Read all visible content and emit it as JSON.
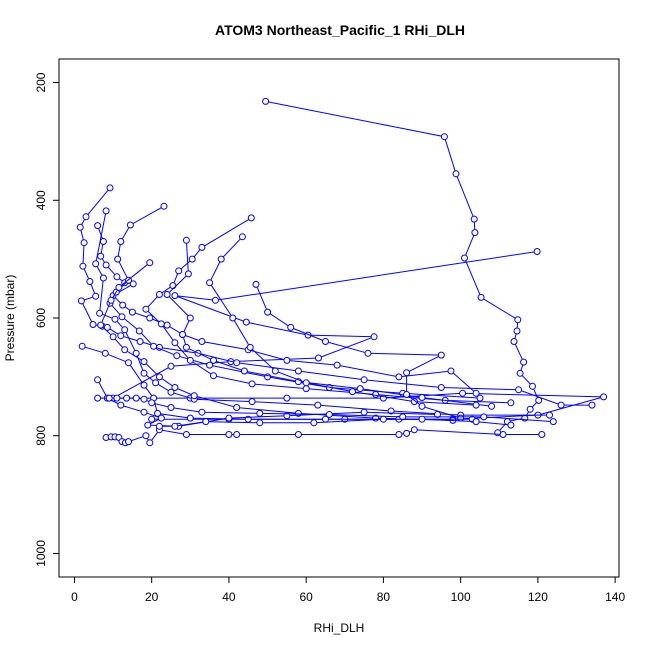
{
  "chart_data": {
    "type": "scatter",
    "title": "ATOM3 Northeast_Pacific_1 RHi_DLH",
    "xlabel": "RHi_DLH",
    "ylabel": "Pressure (mbar)",
    "xlim": [
      -4,
      141
    ],
    "ylim": [
      1040,
      160
    ],
    "y_inverted": true,
    "x_ticks": [
      0,
      20,
      40,
      60,
      80,
      100,
      120,
      140
    ],
    "y_ticks": [
      200,
      400,
      600,
      800,
      1000
    ],
    "grid": false,
    "legend": "none",
    "color": "#0000ff",
    "marker": "open-circle",
    "series": [
      {
        "values": [
          {
            "x": 49.5,
            "y": 232
          },
          {
            "x": 95.8,
            "y": 292
          },
          {
            "x": 98.8,
            "y": 355
          },
          {
            "x": 103.5,
            "y": 432
          },
          {
            "x": 103.7,
            "y": 455
          },
          {
            "x": 101.0,
            "y": 498
          },
          {
            "x": 105.3,
            "y": 565
          },
          {
            "x": 114.8,
            "y": 603
          },
          {
            "x": 114.6,
            "y": 622
          },
          {
            "x": 113.8,
            "y": 640
          },
          {
            "x": 116.3,
            "y": 675
          },
          {
            "x": 115.4,
            "y": 694
          },
          {
            "x": 118.6,
            "y": 716
          },
          {
            "x": 120.2,
            "y": 740
          },
          {
            "x": 118.0,
            "y": 755
          },
          {
            "x": 116.6,
            "y": 770
          },
          {
            "x": 112.1,
            "y": 776
          },
          {
            "x": 109.6,
            "y": 795
          }
        ]
      },
      {
        "values": [
          {
            "x": 119.8,
            "y": 487
          },
          {
            "x": 36.5,
            "y": 570
          },
          {
            "x": 26.0,
            "y": 562
          },
          {
            "x": 44.5,
            "y": 607
          },
          {
            "x": 60.5,
            "y": 629
          },
          {
            "x": 77.6,
            "y": 632
          },
          {
            "x": 63.2,
            "y": 668
          },
          {
            "x": 40.5,
            "y": 674
          },
          {
            "x": 25.0,
            "y": 682
          },
          {
            "x": 10.0,
            "y": 736
          },
          {
            "x": 30.0,
            "y": 736
          },
          {
            "x": 55.0,
            "y": 736
          },
          {
            "x": 80.0,
            "y": 736
          },
          {
            "x": 100.5,
            "y": 728
          },
          {
            "x": 137.0,
            "y": 734
          },
          {
            "x": 120.0,
            "y": 765
          },
          {
            "x": 98.0,
            "y": 772
          },
          {
            "x": 70.0,
            "y": 772
          },
          {
            "x": 40.0,
            "y": 772
          },
          {
            "x": 20.0,
            "y": 772
          }
        ]
      },
      {
        "values": [
          {
            "x": 9.2,
            "y": 379
          },
          {
            "x": 3.0,
            "y": 428
          },
          {
            "x": 1.5,
            "y": 446
          },
          {
            "x": 2.5,
            "y": 472
          },
          {
            "x": 2.2,
            "y": 512
          },
          {
            "x": 4.0,
            "y": 538
          },
          {
            "x": 5.5,
            "y": 563
          },
          {
            "x": 1.8,
            "y": 571
          },
          {
            "x": 4.8,
            "y": 611
          },
          {
            "x": 7.2,
            "y": 614
          },
          {
            "x": 8.5,
            "y": 616
          },
          {
            "x": 12.0,
            "y": 630
          },
          {
            "x": 17.0,
            "y": 640
          },
          {
            "x": 22.0,
            "y": 650
          },
          {
            "x": 32.0,
            "y": 660
          },
          {
            "x": 42.0,
            "y": 676
          },
          {
            "x": 58.0,
            "y": 690
          },
          {
            "x": 75.0,
            "y": 705
          },
          {
            "x": 95.0,
            "y": 718
          },
          {
            "x": 115.0,
            "y": 722
          },
          {
            "x": 126.0,
            "y": 748
          },
          {
            "x": 134.0,
            "y": 748
          }
        ]
      },
      {
        "values": [
          {
            "x": 6.0,
            "y": 443
          },
          {
            "x": 7.5,
            "y": 470
          },
          {
            "x": 6.8,
            "y": 495
          },
          {
            "x": 8.2,
            "y": 510
          },
          {
            "x": 11.0,
            "y": 530
          },
          {
            "x": 13.0,
            "y": 540
          },
          {
            "x": 15.2,
            "y": 542
          },
          {
            "x": 10.0,
            "y": 562
          },
          {
            "x": 12.5,
            "y": 578
          },
          {
            "x": 15.0,
            "y": 590
          },
          {
            "x": 19.5,
            "y": 600
          },
          {
            "x": 24.0,
            "y": 612
          },
          {
            "x": 28.0,
            "y": 628
          },
          {
            "x": 33.0,
            "y": 640
          },
          {
            "x": 45.0,
            "y": 654
          },
          {
            "x": 55.0,
            "y": 672
          },
          {
            "x": 68.0,
            "y": 680
          },
          {
            "x": 84.0,
            "y": 700
          },
          {
            "x": 97.5,
            "y": 690
          },
          {
            "x": 104.0,
            "y": 728
          }
        ]
      },
      {
        "values": [
          {
            "x": 8.2,
            "y": 418
          },
          {
            "x": 5.5,
            "y": 508
          },
          {
            "x": 7.5,
            "y": 532
          },
          {
            "x": 6.5,
            "y": 592
          },
          {
            "x": 10.5,
            "y": 602
          },
          {
            "x": 13.0,
            "y": 620
          },
          {
            "x": 16.0,
            "y": 660
          },
          {
            "x": 18.0,
            "y": 694
          },
          {
            "x": 21.0,
            "y": 710
          },
          {
            "x": 25.0,
            "y": 726
          },
          {
            "x": 31.0,
            "y": 738
          },
          {
            "x": 46.0,
            "y": 742
          },
          {
            "x": 63.0,
            "y": 748
          },
          {
            "x": 82.0,
            "y": 758
          },
          {
            "x": 100.0,
            "y": 765
          },
          {
            "x": 123.0,
            "y": 765
          }
        ]
      },
      {
        "values": [
          {
            "x": 23.2,
            "y": 410
          },
          {
            "x": 14.5,
            "y": 442
          },
          {
            "x": 12.0,
            "y": 470
          },
          {
            "x": 11.2,
            "y": 500
          },
          {
            "x": 14.0,
            "y": 536
          },
          {
            "x": 10.8,
            "y": 556
          },
          {
            "x": 9.2,
            "y": 575
          },
          {
            "x": 12.3,
            "y": 598
          },
          {
            "x": 16.8,
            "y": 622
          },
          {
            "x": 20.5,
            "y": 648
          },
          {
            "x": 26.5,
            "y": 664
          },
          {
            "x": 35.0,
            "y": 680
          },
          {
            "x": 50.0,
            "y": 700
          },
          {
            "x": 66.0,
            "y": 718
          },
          {
            "x": 85.0,
            "y": 728
          },
          {
            "x": 105.0,
            "y": 736
          }
        ]
      },
      {
        "values": [
          {
            "x": 45.8,
            "y": 430
          },
          {
            "x": 33.0,
            "y": 480
          },
          {
            "x": 30.5,
            "y": 500
          },
          {
            "x": 27.0,
            "y": 520
          },
          {
            "x": 25.5,
            "y": 545
          },
          {
            "x": 22.0,
            "y": 560
          },
          {
            "x": 18.5,
            "y": 585
          },
          {
            "x": 22.5,
            "y": 610
          },
          {
            "x": 26.0,
            "y": 642
          },
          {
            "x": 30.0,
            "y": 672
          },
          {
            "x": 36.0,
            "y": 698
          },
          {
            "x": 46.0,
            "y": 712
          },
          {
            "x": 60.0,
            "y": 720
          },
          {
            "x": 78.0,
            "y": 730
          },
          {
            "x": 96.0,
            "y": 740
          },
          {
            "x": 113.0,
            "y": 744
          }
        ]
      },
      {
        "values": [
          {
            "x": 29.0,
            "y": 468
          },
          {
            "x": 29.5,
            "y": 525
          },
          {
            "x": 24.0,
            "y": 560
          },
          {
            "x": 30.0,
            "y": 600
          },
          {
            "x": 28.0,
            "y": 628
          },
          {
            "x": 29.0,
            "y": 650
          },
          {
            "x": 36.0,
            "y": 672
          },
          {
            "x": 44.0,
            "y": 690
          },
          {
            "x": 58.0,
            "y": 708
          },
          {
            "x": 74.0,
            "y": 720
          },
          {
            "x": 90.0,
            "y": 735
          },
          {
            "x": 108.0,
            "y": 750
          }
        ]
      },
      {
        "values": [
          {
            "x": 43.5,
            "y": 462
          },
          {
            "x": 38.0,
            "y": 500
          },
          {
            "x": 35.0,
            "y": 540
          },
          {
            "x": 41.0,
            "y": 600
          },
          {
            "x": 45.5,
            "y": 650
          },
          {
            "x": 52.0,
            "y": 690
          },
          {
            "x": 60.0,
            "y": 710
          },
          {
            "x": 72.0,
            "y": 725
          },
          {
            "x": 88.0,
            "y": 742
          },
          {
            "x": 104.0,
            "y": 748
          }
        ]
      },
      {
        "values": [
          {
            "x": 47.0,
            "y": 543
          },
          {
            "x": 50.0,
            "y": 590
          },
          {
            "x": 56.0,
            "y": 616
          },
          {
            "x": 65.0,
            "y": 640
          },
          {
            "x": 76.0,
            "y": 660
          },
          {
            "x": 95.0,
            "y": 663
          },
          {
            "x": 86.0,
            "y": 693
          },
          {
            "x": 86.0,
            "y": 730
          },
          {
            "x": 90.0,
            "y": 750
          },
          {
            "x": 100.0,
            "y": 770
          }
        ]
      },
      {
        "values": [
          {
            "x": 19.5,
            "y": 506
          },
          {
            "x": 11.5,
            "y": 548
          },
          {
            "x": 9.5,
            "y": 570
          },
          {
            "x": 6.8,
            "y": 612
          },
          {
            "x": 10.0,
            "y": 632
          },
          {
            "x": 13.0,
            "y": 654
          },
          {
            "x": 18.0,
            "y": 674
          },
          {
            "x": 22.0,
            "y": 700
          },
          {
            "x": 26.0,
            "y": 718
          },
          {
            "x": 31.0,
            "y": 732
          },
          {
            "x": 42.0,
            "y": 752
          },
          {
            "x": 58.0,
            "y": 762
          },
          {
            "x": 78.0,
            "y": 770
          },
          {
            "x": 98.0,
            "y": 774
          }
        ]
      },
      {
        "values": [
          {
            "x": 2.0,
            "y": 648
          },
          {
            "x": 8.0,
            "y": 660
          },
          {
            "x": 14.0,
            "y": 676
          },
          {
            "x": 18.0,
            "y": 714
          },
          {
            "x": 20.5,
            "y": 736
          },
          {
            "x": 21.5,
            "y": 762
          },
          {
            "x": 30.0,
            "y": 770
          },
          {
            "x": 45.0,
            "y": 772
          },
          {
            "x": 65.0,
            "y": 772
          },
          {
            "x": 84.0,
            "y": 772
          },
          {
            "x": 103.0,
            "y": 772
          }
        ]
      },
      {
        "values": [
          {
            "x": 6.0,
            "y": 705
          },
          {
            "x": 8.5,
            "y": 736
          },
          {
            "x": 12.0,
            "y": 748
          },
          {
            "x": 18.0,
            "y": 760
          },
          {
            "x": 22.5,
            "y": 770
          },
          {
            "x": 19.0,
            "y": 782
          },
          {
            "x": 27.0,
            "y": 784
          },
          {
            "x": 40.0,
            "y": 770
          },
          {
            "x": 55.0,
            "y": 766
          },
          {
            "x": 75.0,
            "y": 760
          },
          {
            "x": 94.0,
            "y": 764
          }
        ]
      },
      {
        "values": [
          {
            "x": 6.0,
            "y": 736
          },
          {
            "x": 9.0,
            "y": 736
          },
          {
            "x": 11.0,
            "y": 736
          },
          {
            "x": 13.5,
            "y": 736
          },
          {
            "x": 16.0,
            "y": 736
          },
          {
            "x": 18.0,
            "y": 738
          },
          {
            "x": 20.0,
            "y": 744
          },
          {
            "x": 25.0,
            "y": 752
          },
          {
            "x": 33.0,
            "y": 760
          },
          {
            "x": 48.0,
            "y": 762
          },
          {
            "x": 66.0,
            "y": 764
          },
          {
            "x": 85.0,
            "y": 768
          },
          {
            "x": 106.0,
            "y": 768
          },
          {
            "x": 124.0,
            "y": 776
          }
        ]
      },
      {
        "values": [
          {
            "x": 8.2,
            "y": 803
          },
          {
            "x": 9.5,
            "y": 802
          },
          {
            "x": 10.5,
            "y": 802
          },
          {
            "x": 11.5,
            "y": 803
          },
          {
            "x": 12.3,
            "y": 810
          },
          {
            "x": 13.2,
            "y": 812
          },
          {
            "x": 14.0,
            "y": 810
          },
          {
            "x": 18.5,
            "y": 800
          },
          {
            "x": 19.5,
            "y": 812
          },
          {
            "x": 22.0,
            "y": 790
          },
          {
            "x": 29.0,
            "y": 798
          },
          {
            "x": 40.0,
            "y": 798
          },
          {
            "x": 42.0,
            "y": 798
          },
          {
            "x": 58.0,
            "y": 798
          },
          {
            "x": 84.0,
            "y": 798
          },
          {
            "x": 86.0,
            "y": 796
          },
          {
            "x": 88.0,
            "y": 790
          },
          {
            "x": 111.0,
            "y": 798
          },
          {
            "x": 121.0,
            "y": 798
          }
        ]
      },
      {
        "values": [
          {
            "x": 22.0,
            "y": 784
          },
          {
            "x": 26.0,
            "y": 784
          },
          {
            "x": 34.0,
            "y": 776
          },
          {
            "x": 48.0,
            "y": 778
          },
          {
            "x": 62.0,
            "y": 778
          },
          {
            "x": 80.0,
            "y": 772
          },
          {
            "x": 90.0,
            "y": 772
          },
          {
            "x": 104.0,
            "y": 776
          },
          {
            "x": 113.0,
            "y": 782
          }
        ]
      }
    ]
  }
}
